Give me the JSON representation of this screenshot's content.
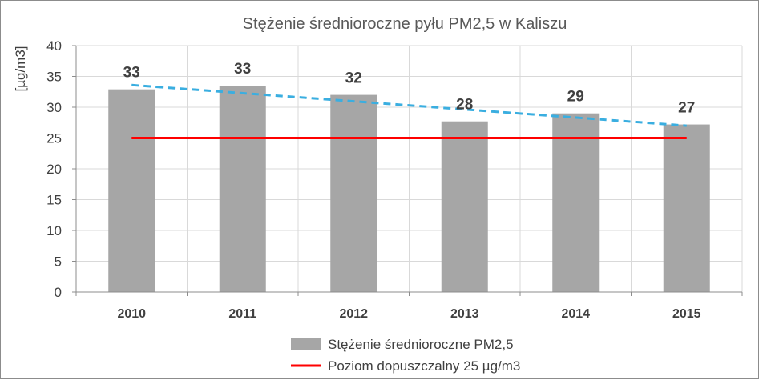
{
  "chart_data": {
    "type": "bar",
    "title": "Stężenie średnioroczne pyłu PM2,5 w  Kaliszu",
    "ylabel": "[µg/m3]",
    "xlabel": "",
    "categories": [
      "2010",
      "2011",
      "2012",
      "2013",
      "2014",
      "2015"
    ],
    "series": [
      {
        "name": "Stężenie średnioroczne PM2,5",
        "type": "bar",
        "values": [
          32.9,
          33.5,
          32.0,
          27.7,
          29.0,
          27.2
        ],
        "labels": [
          "33",
          "33",
          "32",
          "28",
          "29",
          "27"
        ],
        "color": "#a6a6a6"
      },
      {
        "name": "Poziom dopuszczalny 25 µg/m3",
        "type": "line",
        "values": [
          25,
          25,
          25,
          25,
          25,
          25
        ],
        "color": "#ff0000"
      }
    ],
    "trendline": {
      "style": "dashed",
      "color": "#3aaee0",
      "start": 33.6,
      "end": 27.0
    },
    "ylim": [
      0,
      40
    ],
    "yticks": [
      "0",
      "5",
      "10",
      "15",
      "20",
      "25",
      "30",
      "35",
      "40"
    ],
    "grid": true,
    "legend_position": "bottom"
  }
}
